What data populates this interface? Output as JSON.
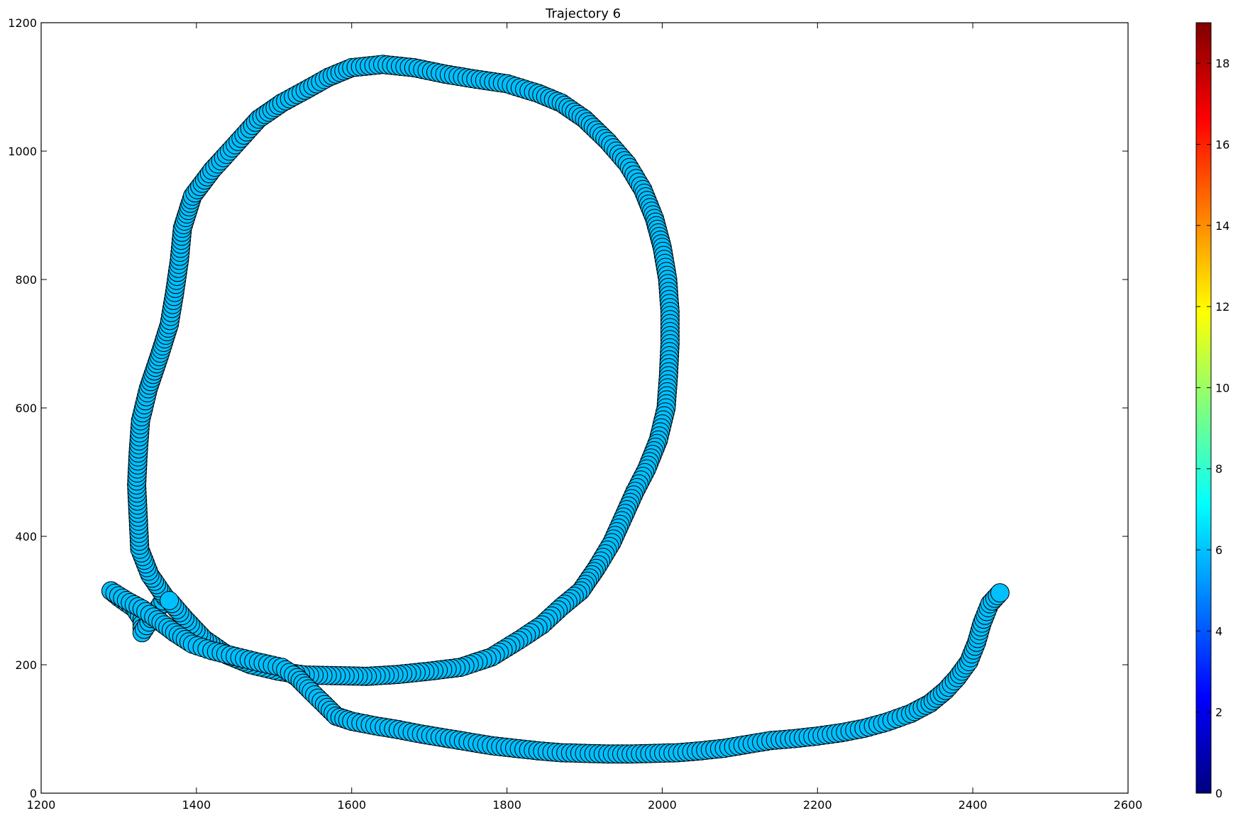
{
  "chart_data": {
    "type": "scatter",
    "title": "Trajectory 6",
    "xlabel": "",
    "ylabel": "",
    "xlim": [
      1200,
      2600
    ],
    "ylim": [
      0,
      1200
    ],
    "x_ticks": [
      "1200",
      "1400",
      "1600",
      "1800",
      "2000",
      "2200",
      "2400",
      "2600"
    ],
    "y_ticks": [
      "0",
      "200",
      "400",
      "600",
      "800",
      "1000",
      "1200"
    ],
    "grid": false,
    "legend": "none",
    "marker_color": "#00bfff",
    "marker_edge_color": "#000000",
    "colorbar": {
      "colormap": "jet",
      "range": [
        0,
        19
      ],
      "ticks": [
        "0",
        "2",
        "4",
        "6",
        "8",
        "10",
        "12",
        "14",
        "16",
        "18"
      ]
    },
    "path": [
      [
        1290,
        315
      ],
      [
        1310,
        300
      ],
      [
        1330,
        287
      ],
      [
        1350,
        270
      ],
      [
        1372,
        250
      ],
      [
        1395,
        232
      ],
      [
        1420,
        222
      ],
      [
        1450,
        213
      ],
      [
        1480,
        204
      ],
      [
        1510,
        196
      ],
      [
        1530,
        180
      ],
      [
        1548,
        158
      ],
      [
        1565,
        138
      ],
      [
        1580,
        120
      ],
      [
        1600,
        112
      ],
      [
        1630,
        105
      ],
      [
        1660,
        99
      ],
      [
        1690,
        92
      ],
      [
        1720,
        86
      ],
      [
        1750,
        80
      ],
      [
        1780,
        74
      ],
      [
        1810,
        70
      ],
      [
        1840,
        66
      ],
      [
        1870,
        63
      ],
      [
        1900,
        62
      ],
      [
        1930,
        61
      ],
      [
        1960,
        61
      ],
      [
        1990,
        62
      ],
      [
        2020,
        63
      ],
      [
        2050,
        66
      ],
      [
        2080,
        70
      ],
      [
        2110,
        76
      ],
      [
        2140,
        82
      ],
      [
        2170,
        85
      ],
      [
        2200,
        89
      ],
      [
        2230,
        94
      ],
      [
        2260,
        101
      ],
      [
        2290,
        111
      ],
      [
        2320,
        124
      ],
      [
        2345,
        140
      ],
      [
        2365,
        160
      ],
      [
        2380,
        180
      ],
      [
        2395,
        205
      ],
      [
        2405,
        235
      ],
      [
        2412,
        265
      ],
      [
        2422,
        295
      ],
      [
        2435,
        312
      ]
    ],
    "path_loop": [
      [
        1290,
        315
      ],
      [
        1300,
        305
      ],
      [
        1320,
        288
      ],
      [
        1330,
        270
      ],
      [
        1330,
        250
      ],
      [
        1360,
        305
      ],
      [
        1340,
        340
      ],
      [
        1327,
        380
      ],
      [
        1325,
        430
      ],
      [
        1323,
        480
      ],
      [
        1325,
        530
      ],
      [
        1328,
        580
      ],
      [
        1338,
        630
      ],
      [
        1352,
        680
      ],
      [
        1365,
        730
      ],
      [
        1372,
        780
      ],
      [
        1378,
        830
      ],
      [
        1382,
        880
      ],
      [
        1395,
        930
      ],
      [
        1420,
        970
      ],
      [
        1450,
        1010
      ],
      [
        1480,
        1050
      ],
      [
        1510,
        1075
      ],
      [
        1545,
        1098
      ],
      [
        1570,
        1115
      ],
      [
        1600,
        1130
      ],
      [
        1640,
        1135
      ],
      [
        1680,
        1130
      ],
      [
        1720,
        1120
      ],
      [
        1760,
        1112
      ],
      [
        1800,
        1105
      ],
      [
        1840,
        1090
      ],
      [
        1870,
        1075
      ],
      [
        1900,
        1050
      ],
      [
        1930,
        1015
      ],
      [
        1955,
        980
      ],
      [
        1975,
        940
      ],
      [
        1990,
        895
      ],
      [
        2000,
        850
      ],
      [
        2007,
        800
      ],
      [
        2010,
        750
      ],
      [
        2010,
        700
      ],
      [
        2008,
        650
      ],
      [
        2005,
        600
      ],
      [
        1995,
        550
      ],
      [
        1980,
        505
      ],
      [
        1965,
        470
      ],
      [
        1950,
        430
      ],
      [
        1935,
        390
      ],
      [
        1915,
        350
      ],
      [
        1895,
        315
      ],
      [
        1870,
        290
      ],
      [
        1845,
        262
      ],
      [
        1815,
        238
      ],
      [
        1780,
        212
      ],
      [
        1740,
        196
      ],
      [
        1700,
        190
      ],
      [
        1660,
        185
      ],
      [
        1620,
        182
      ],
      [
        1580,
        183
      ],
      [
        1540,
        184
      ],
      [
        1505,
        190
      ],
      [
        1470,
        200
      ],
      [
        1440,
        215
      ],
      [
        1410,
        240
      ],
      [
        1385,
        272
      ],
      [
        1365,
        300
      ]
    ]
  }
}
